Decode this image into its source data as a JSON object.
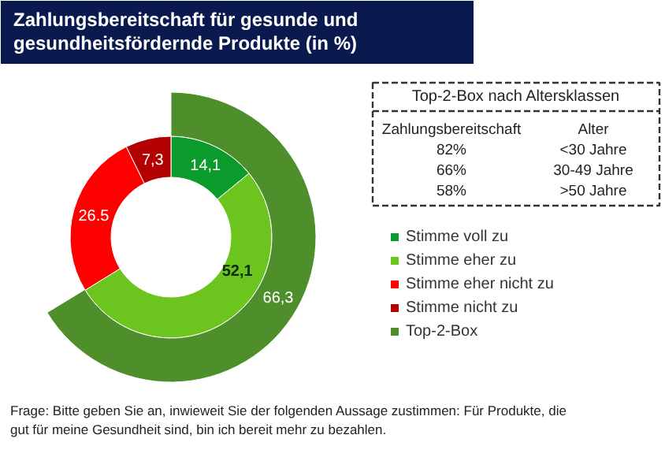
{
  "chart_data": {
    "type": "donut",
    "title": "Zahlungsbereitschaft für gesunde und gesundheitsfördernde Produkte (in %)",
    "categories": [
      "Stimme voll zu",
      "Stimme eher zu",
      "Stimme eher nicht zu",
      "Stimme nicht zu",
      "Top-2-Box"
    ],
    "series": [
      {
        "values": [
          14.1,
          52.1,
          26.5,
          7.3,
          null
        ],
        "colors": [
          "#0b9a2c",
          "#6cc51f",
          "#ff0000",
          "#b30000",
          null
        ],
        "value_labels": [
          "14,1",
          "52,1",
          "26.5",
          "7,3",
          null
        ]
      },
      {
        "values": [
          null,
          null,
          null,
          null,
          66.3
        ],
        "colors": [
          null,
          null,
          null,
          null,
          "#4f8f2b"
        ],
        "value_labels": [
          null,
          null,
          null,
          null,
          "66,3"
        ]
      }
    ],
    "legend": "right",
    "annotations": [
      "Top-2-Box nach Altersklassen",
      "Zahlungsbereitschaft",
      "Alter",
      "82%",
      "<30 Jahre",
      "66%",
      "30-49 Jahre",
      "58%",
      ">50 Jahre",
      "Frage: Bitte geben Sie an, inwieweit Sie der folgenden Aussage zustimmen: Für Produkte, die gut für meine Gesundheit sind, bin ich bereit mehr zu bezahlen."
    ]
  }
}
